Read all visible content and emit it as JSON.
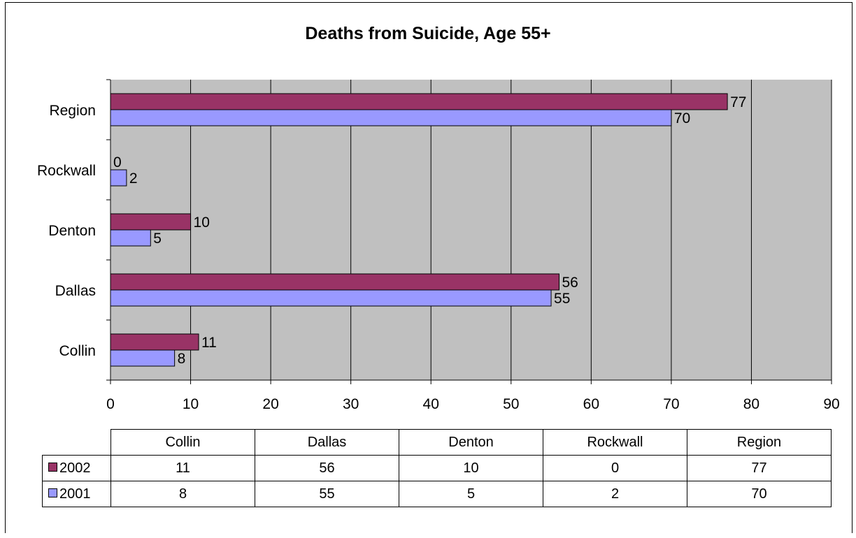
{
  "chart_data": {
    "type": "bar",
    "orientation": "horizontal",
    "title": "Deaths from Suicide, Age 55+",
    "xlabel": "",
    "ylabel": "",
    "categories": [
      "Collin",
      "Dallas",
      "Denton",
      "Rockwall",
      "Region"
    ],
    "series": [
      {
        "name": "2002",
        "values": [
          11,
          56,
          10,
          0,
          77
        ],
        "color": "#993366"
      },
      {
        "name": "2001",
        "values": [
          8,
          55,
          5,
          2,
          70
        ],
        "color": "#9999ff"
      }
    ],
    "xlim": [
      0,
      90
    ],
    "xticks": [
      0,
      10,
      20,
      30,
      40,
      50,
      60,
      70,
      80,
      90
    ],
    "grid": true,
    "plot_background": "#c0c0c0",
    "legend": "data-table-below"
  }
}
